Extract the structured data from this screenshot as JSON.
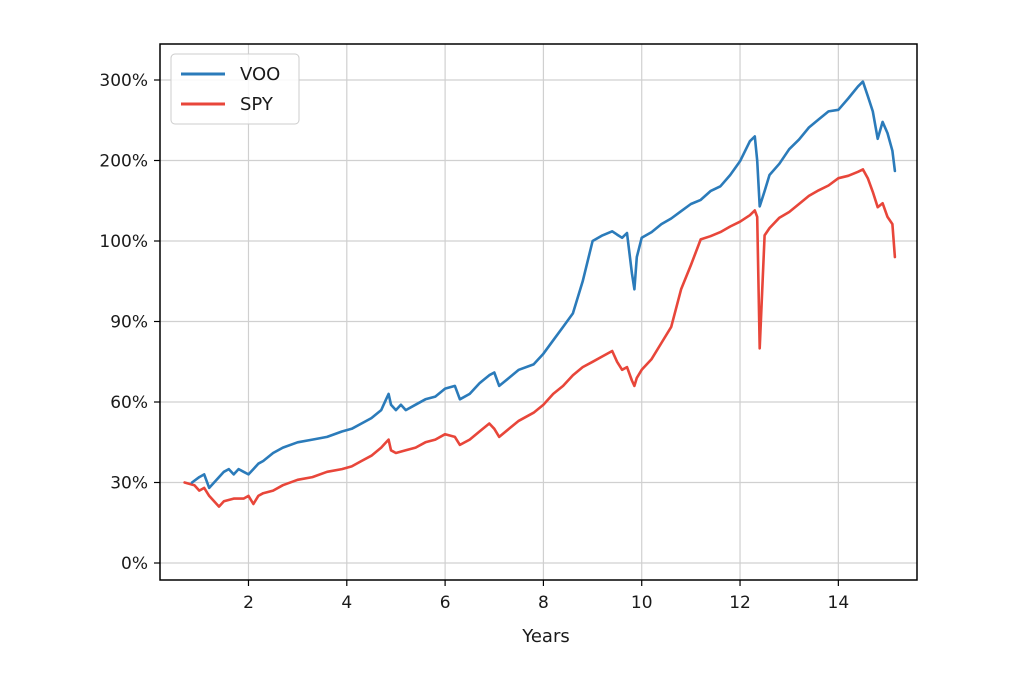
{
  "chart_data": {
    "type": "line",
    "title": "",
    "xlabel": "Years",
    "ylabel": "",
    "xlim": [
      0.2,
      15.6
    ],
    "x_ticks": [
      2,
      4,
      6,
      8,
      10,
      12,
      14
    ],
    "y_tick_labels": [
      "0%",
      "30%",
      "60%",
      "90%",
      "100%",
      "200%",
      "300%"
    ],
    "grid": true,
    "legend_position": "upper-left",
    "series": [
      {
        "name": "VOO",
        "color": "#2b7bba",
        "x": [
          0.85,
          1.0,
          1.1,
          1.2,
          1.3,
          1.4,
          1.5,
          1.6,
          1.7,
          1.8,
          1.9,
          2.0,
          2.1,
          2.2,
          2.3,
          2.5,
          2.7,
          3.0,
          3.3,
          3.6,
          3.9,
          4.1,
          4.3,
          4.5,
          4.7,
          4.8,
          4.85,
          4.9,
          5.0,
          5.1,
          5.2,
          5.4,
          5.6,
          5.8,
          6.0,
          6.2,
          6.3,
          6.5,
          6.7,
          6.9,
          7.0,
          7.1,
          7.3,
          7.5,
          7.8,
          8.0,
          8.2,
          8.4,
          8.6,
          8.8,
          9.0,
          9.2,
          9.4,
          9.5,
          9.6,
          9.7,
          9.8,
          9.85,
          9.9,
          10.0,
          10.2,
          10.4,
          10.6,
          10.8,
          11.0,
          11.2,
          11.4,
          11.6,
          11.8,
          12.0,
          12.2,
          12.3,
          12.35,
          12.4,
          12.5,
          12.6,
          12.8,
          13.0,
          13.2,
          13.4,
          13.6,
          13.8,
          14.0,
          14.2,
          14.4,
          14.5,
          14.6,
          14.7,
          14.8,
          14.9,
          15.0,
          15.1,
          15.15
        ],
        "values": [
          30,
          32,
          33,
          28,
          30,
          32,
          34,
          35,
          33,
          35,
          34,
          33,
          35,
          37,
          38,
          41,
          43,
          45,
          46,
          47,
          49,
          50,
          52,
          54,
          57,
          61,
          63,
          59,
          57,
          59,
          57,
          59,
          61,
          62,
          65,
          66,
          61,
          63,
          67,
          70,
          71,
          66,
          69,
          72,
          74,
          78,
          83,
          88,
          91,
          95,
          100,
          107,
          112,
          108,
          104,
          110,
          96,
          94,
          98,
          104,
          111,
          121,
          128,
          137,
          146,
          151,
          162,
          168,
          182,
          199,
          224,
          230,
          200,
          143,
          162,
          182,
          196,
          214,
          226,
          241,
          251,
          261,
          263,
          277,
          292,
          298,
          280,
          261,
          227,
          248,
          234,
          212,
          187
        ]
      },
      {
        "name": "SPY",
        "color": "#e8463a",
        "x": [
          0.7,
          0.9,
          1.0,
          1.1,
          1.2,
          1.3,
          1.4,
          1.5,
          1.7,
          1.9,
          2.0,
          2.1,
          2.2,
          2.3,
          2.5,
          2.7,
          3.0,
          3.3,
          3.6,
          3.9,
          4.1,
          4.3,
          4.5,
          4.7,
          4.8,
          4.85,
          4.9,
          5.0,
          5.2,
          5.4,
          5.6,
          5.8,
          6.0,
          6.2,
          6.3,
          6.5,
          6.7,
          6.9,
          7.0,
          7.1,
          7.3,
          7.5,
          7.8,
          8.0,
          8.2,
          8.4,
          8.6,
          8.8,
          9.0,
          9.2,
          9.4,
          9.5,
          9.6,
          9.7,
          9.8,
          9.85,
          9.9,
          10.0,
          10.2,
          10.4,
          10.6,
          10.8,
          11.0,
          11.2,
          11.4,
          11.6,
          11.8,
          12.0,
          12.2,
          12.3,
          12.35,
          12.4,
          12.5,
          12.6,
          12.8,
          13.0,
          13.2,
          13.4,
          13.6,
          13.8,
          14.0,
          14.2,
          14.4,
          14.5,
          14.6,
          14.7,
          14.8,
          14.9,
          15.0,
          15.1,
          15.15
        ],
        "values": [
          30,
          29,
          27,
          28,
          25,
          23,
          21,
          23,
          24,
          24,
          25,
          22,
          25,
          26,
          27,
          29,
          31,
          32,
          34,
          35,
          36,
          38,
          40,
          43,
          45,
          46,
          42,
          41,
          42,
          43,
          45,
          46,
          48,
          47,
          44,
          46,
          49,
          52,
          50,
          47,
          50,
          53,
          56,
          59,
          63,
          66,
          70,
          73,
          75,
          77,
          79,
          75,
          72,
          73,
          68,
          66,
          69,
          72,
          76,
          82,
          88,
          94,
          97,
          102,
          106,
          111,
          118,
          124,
          132,
          138,
          130,
          80,
          107,
          116,
          129,
          136,
          146,
          156,
          163,
          169,
          178,
          181,
          186,
          189,
          178,
          161,
          142,
          147,
          130,
          121,
          98
        ]
      }
    ]
  }
}
